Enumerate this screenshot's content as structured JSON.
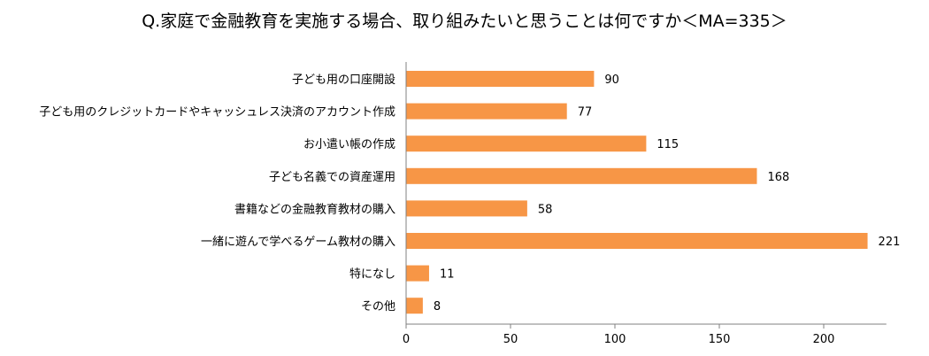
{
  "chart_data": {
    "type": "bar",
    "orientation": "horizontal",
    "title": "Q.家庭で金融教育を実施する場合、取り組みたいと思うことは何ですか＜MA=335＞",
    "categories": [
      "子ども用の口座開設",
      "子ども用のクレジットカードやキャッシュレス決済のアカウント作成",
      "お小遣い帳の作成",
      "子ども名義での資産運用",
      "書籍などの金融教育教材の購入",
      "一緒に遊んで学べるゲーム教材の購入",
      "特になし",
      "その他"
    ],
    "values": [
      90,
      77,
      115,
      168,
      58,
      221,
      11,
      8
    ],
    "xlim": [
      0,
      230
    ],
    "xticks": [
      0,
      50,
      100,
      150,
      200
    ],
    "bar_color": "#F79646",
    "grid": false,
    "legend": "none",
    "xlabel": "",
    "ylabel": ""
  }
}
